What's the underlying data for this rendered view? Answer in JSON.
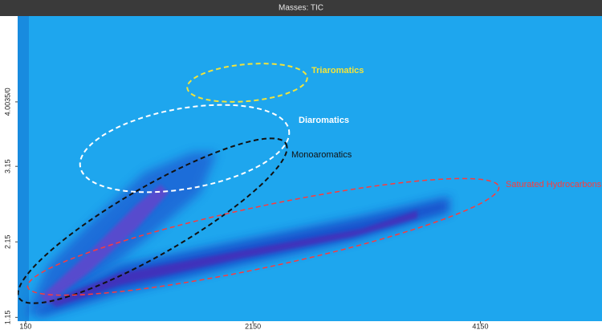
{
  "chart_data": {
    "type": "heatmap",
    "title": "Masses: TIC",
    "xlim": [
      80,
      5220
    ],
    "xticks": [
      150,
      2150,
      4150
    ],
    "ylim": [
      1.1,
      5.14
    ],
    "yticks": [
      1.15,
      2.15,
      3.15,
      {
        "value": 4.0035,
        "label": "4.0035/0"
      }
    ],
    "annotations": [
      {
        "text": "Triaromatics",
        "color": "#f2e33a"
      },
      {
        "text": "Diaromatics",
        "color": "#ffffff"
      },
      {
        "text": "Monoaromatics",
        "color": "#111111"
      },
      {
        "text": "Saturated Hydrocarbons",
        "color": "#ff3a3a"
      }
    ]
  }
}
